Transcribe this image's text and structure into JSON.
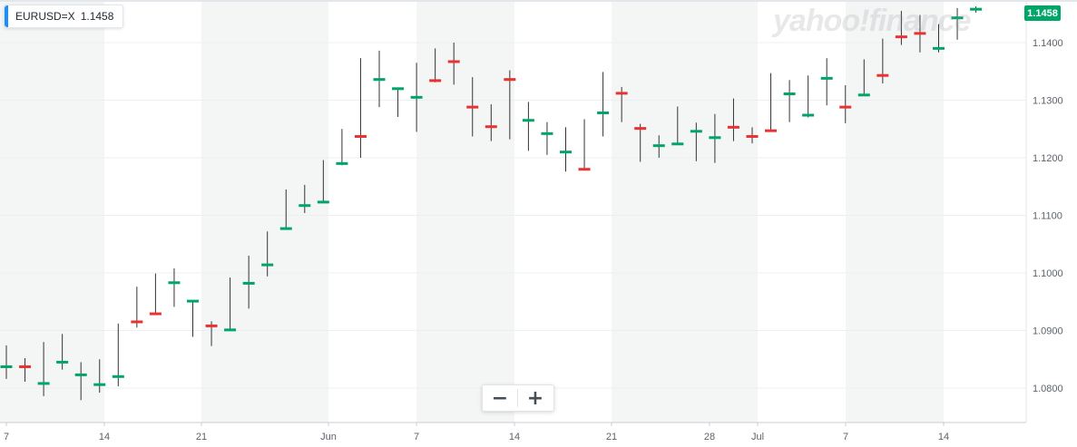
{
  "ticker": {
    "symbol": "EURUSD=X",
    "price": "1.1458"
  },
  "watermark": "yahoo!finance",
  "last_price_badge": "1.1458",
  "zoom": {
    "minus": "−",
    "plus": "+"
  },
  "colors": {
    "up": "#00a568",
    "down": "#ea3232",
    "band": "#f4f6f6",
    "wick": "#333333",
    "badge": "#00a568",
    "accent": "#188fff"
  },
  "chart_data": {
    "type": "ohlc",
    "symbol": "EURUSD=X",
    "ylim": [
      1.0745,
      1.1465
    ],
    "y_ticks": [
      "1.1400",
      "1.1300",
      "1.1200",
      "1.1100",
      "1.1000",
      "1.0900",
      "1.0800"
    ],
    "x_ticks": [
      "7",
      "14",
      "21",
      "Jun",
      "7",
      "14",
      "21",
      "28",
      "Jul",
      "7",
      "14"
    ],
    "x_tick_day_index": [
      0,
      5,
      10,
      15,
      20,
      25,
      30,
      35,
      37,
      42,
      47
    ],
    "shaded_week_columns": [
      0,
      2,
      4,
      6,
      8
    ],
    "bars": [
      {
        "o": 1.0837,
        "h": 1.0874,
        "l": 1.0816,
        "c": 1.0837,
        "dir": "up"
      },
      {
        "o": 1.0837,
        "h": 1.0852,
        "l": 1.0811,
        "c": 1.0837,
        "dir": "down"
      },
      {
        "o": 1.0808,
        "h": 1.088,
        "l": 1.0786,
        "c": 1.0808,
        "dir": "up"
      },
      {
        "o": 1.0845,
        "h": 1.0894,
        "l": 1.0832,
        "c": 1.0845,
        "dir": "up"
      },
      {
        "o": 1.0823,
        "h": 1.0845,
        "l": 1.0779,
        "c": 1.0823,
        "dir": "up"
      },
      {
        "o": 1.0806,
        "h": 1.085,
        "l": 1.0792,
        "c": 1.0806,
        "dir": "up"
      },
      {
        "o": 1.082,
        "h": 1.0912,
        "l": 1.0803,
        "c": 1.082,
        "dir": "up"
      },
      {
        "o": 1.0915,
        "h": 1.0976,
        "l": 1.0905,
        "c": 1.0915,
        "dir": "down"
      },
      {
        "o": 1.0929,
        "h": 1.0999,
        "l": 1.0929,
        "c": 1.0929,
        "dir": "down"
      },
      {
        "o": 1.0983,
        "h": 1.1008,
        "l": 1.0941,
        "c": 1.0983,
        "dir": "up"
      },
      {
        "o": 1.0951,
        "h": 1.0951,
        "l": 1.0889,
        "c": 1.0951,
        "dir": "up"
      },
      {
        "o": 1.0908,
        "h": 1.0916,
        "l": 1.0873,
        "c": 1.0908,
        "dir": "down"
      },
      {
        "o": 1.0901,
        "h": 1.0992,
        "l": 1.0901,
        "c": 1.0901,
        "dir": "up"
      },
      {
        "o": 1.0982,
        "h": 1.103,
        "l": 1.0938,
        "c": 1.0982,
        "dir": "up"
      },
      {
        "o": 1.1014,
        "h": 1.1072,
        "l": 1.0994,
        "c": 1.1014,
        "dir": "up"
      },
      {
        "o": 1.1077,
        "h": 1.1145,
        "l": 1.1077,
        "c": 1.1077,
        "dir": "up"
      },
      {
        "o": 1.1117,
        "h": 1.1153,
        "l": 1.1104,
        "c": 1.1117,
        "dir": "up"
      },
      {
        "o": 1.1123,
        "h": 1.1196,
        "l": 1.1123,
        "c": 1.1123,
        "dir": "up"
      },
      {
        "o": 1.119,
        "h": 1.125,
        "l": 1.1187,
        "c": 1.119,
        "dir": "up"
      },
      {
        "o": 1.1237,
        "h": 1.1373,
        "l": 1.12,
        "c": 1.1237,
        "dir": "down"
      },
      {
        "o": 1.1336,
        "h": 1.1386,
        "l": 1.1288,
        "c": 1.1336,
        "dir": "up"
      },
      {
        "o": 1.132,
        "h": 1.132,
        "l": 1.1271,
        "c": 1.132,
        "dir": "up"
      },
      {
        "o": 1.1305,
        "h": 1.1365,
        "l": 1.1245,
        "c": 1.1305,
        "dir": "up"
      },
      {
        "o": 1.1334,
        "h": 1.139,
        "l": 1.1331,
        "c": 1.1334,
        "dir": "down"
      },
      {
        "o": 1.1367,
        "h": 1.14,
        "l": 1.1327,
        "c": 1.1367,
        "dir": "down"
      },
      {
        "o": 1.1288,
        "h": 1.134,
        "l": 1.1237,
        "c": 1.1288,
        "dir": "down"
      },
      {
        "o": 1.1254,
        "h": 1.1293,
        "l": 1.1229,
        "c": 1.1254,
        "dir": "down"
      },
      {
        "o": 1.1336,
        "h": 1.1352,
        "l": 1.1232,
        "c": 1.1336,
        "dir": "down"
      },
      {
        "o": 1.1265,
        "h": 1.1297,
        "l": 1.1212,
        "c": 1.1265,
        "dir": "up"
      },
      {
        "o": 1.1242,
        "h": 1.1262,
        "l": 1.1205,
        "c": 1.1242,
        "dir": "up"
      },
      {
        "o": 1.121,
        "h": 1.1253,
        "l": 1.1176,
        "c": 1.121,
        "dir": "up"
      },
      {
        "o": 1.118,
        "h": 1.1267,
        "l": 1.118,
        "c": 1.118,
        "dir": "down"
      },
      {
        "o": 1.1278,
        "h": 1.1349,
        "l": 1.1237,
        "c": 1.1278,
        "dir": "up"
      },
      {
        "o": 1.1312,
        "h": 1.1323,
        "l": 1.1262,
        "c": 1.1312,
        "dir": "down"
      },
      {
        "o": 1.1251,
        "h": 1.1259,
        "l": 1.1193,
        "c": 1.1251,
        "dir": "down"
      },
      {
        "o": 1.1221,
        "h": 1.1239,
        "l": 1.12,
        "c": 1.1221,
        "dir": "up"
      },
      {
        "o": 1.1224,
        "h": 1.1289,
        "l": 1.1223,
        "c": 1.1224,
        "dir": "up"
      },
      {
        "o": 1.1246,
        "h": 1.1261,
        "l": 1.1194,
        "c": 1.1246,
        "dir": "up"
      },
      {
        "o": 1.1235,
        "h": 1.1276,
        "l": 1.1191,
        "c": 1.1235,
        "dir": "up"
      },
      {
        "o": 1.1253,
        "h": 1.1303,
        "l": 1.1229,
        "c": 1.1253,
        "dir": "down"
      },
      {
        "o": 1.1237,
        "h": 1.1253,
        "l": 1.1225,
        "c": 1.1237,
        "dir": "down"
      },
      {
        "o": 1.1247,
        "h": 1.1347,
        "l": 1.1247,
        "c": 1.1247,
        "dir": "down"
      },
      {
        "o": 1.1311,
        "h": 1.1335,
        "l": 1.1262,
        "c": 1.1311,
        "dir": "up"
      },
      {
        "o": 1.1274,
        "h": 1.1343,
        "l": 1.127,
        "c": 1.1274,
        "dir": "up"
      },
      {
        "o": 1.1338,
        "h": 1.1373,
        "l": 1.1291,
        "c": 1.1338,
        "dir": "up"
      },
      {
        "o": 1.1288,
        "h": 1.1326,
        "l": 1.126,
        "c": 1.1288,
        "dir": "down"
      },
      {
        "o": 1.1309,
        "h": 1.1371,
        "l": 1.1309,
        "c": 1.1309,
        "dir": "up"
      },
      {
        "o": 1.1343,
        "h": 1.1407,
        "l": 1.1329,
        "c": 1.1343,
        "dir": "down"
      },
      {
        "o": 1.141,
        "h": 1.1455,
        "l": 1.1396,
        "c": 1.141,
        "dir": "down"
      },
      {
        "o": 1.1416,
        "h": 1.1448,
        "l": 1.1383,
        "c": 1.1416,
        "dir": "down"
      },
      {
        "o": 1.139,
        "h": 1.1432,
        "l": 1.1383,
        "c": 1.139,
        "dir": "up"
      },
      {
        "o": 1.1443,
        "h": 1.146,
        "l": 1.1405,
        "c": 1.1443,
        "dir": "up"
      },
      {
        "o": 1.1458,
        "h": 1.1463,
        "l": 1.1452,
        "c": 1.1458,
        "dir": "up"
      }
    ]
  }
}
